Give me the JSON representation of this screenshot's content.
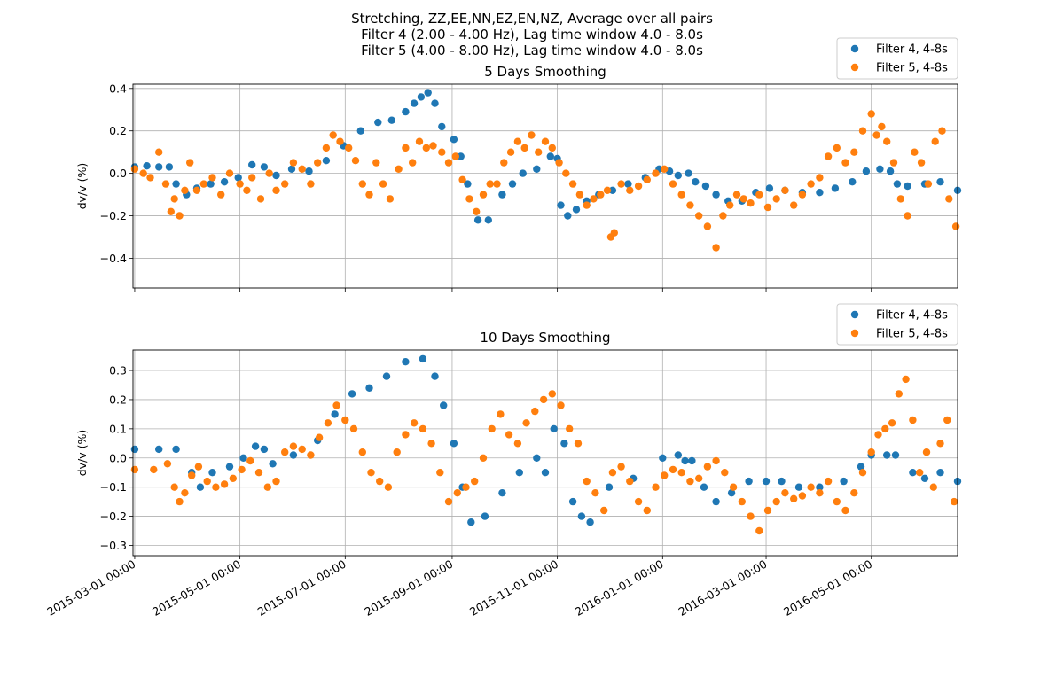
{
  "figure": {
    "title_lines": [
      "Stretching, ZZ,EE,NN,EZ,EN,NZ, Average over all pairs",
      "Filter 4 (2.00 - 4.00 Hz), Lag time window 4.0 - 8.0s",
      "Filter 5 (4.00 - 8.00 Hz), Lag time window 4.0 - 8.0s"
    ]
  },
  "colors": {
    "filter4": "#1f77b4",
    "filter5": "#ff7f0e",
    "grid": "#b0b0b0"
  },
  "chart_data": [
    {
      "type": "scatter",
      "title": "5 Days Smoothing",
      "xlabel": "",
      "ylabel": "dv/v (%)",
      "xlim": [
        "2015-02-28",
        "2016-06-20"
      ],
      "ylim": [
        -0.54,
        0.42
      ],
      "yticks": [
        -0.4,
        -0.2,
        0.0,
        0.2,
        0.4
      ],
      "ytick_labels": [
        "−0.4",
        "−0.2",
        "0.0",
        "0.2",
        "0.4"
      ],
      "grid": true,
      "legend_placement": "top-right, outside",
      "series": [
        {
          "name": "Filter 4, 4-8s",
          "x": [
            "2015-03-01",
            "2015-03-08",
            "2015-03-15",
            "2015-03-21",
            "2015-03-25",
            "2015-03-31",
            "2015-04-06",
            "2015-04-14",
            "2015-04-22",
            "2015-04-30",
            "2015-05-08",
            "2015-05-15",
            "2015-05-22",
            "2015-05-31",
            "2015-06-10",
            "2015-06-20",
            "2015-06-30",
            "2015-07-10",
            "2015-07-20",
            "2015-07-28",
            "2015-08-05",
            "2015-08-10",
            "2015-08-14",
            "2015-08-18",
            "2015-08-22",
            "2015-08-26",
            "2015-09-02",
            "2015-09-06",
            "2015-09-10",
            "2015-09-16",
            "2015-09-22",
            "2015-09-30",
            "2015-10-06",
            "2015-10-12",
            "2015-10-20",
            "2015-10-28",
            "2015-11-01",
            "2015-11-03",
            "2015-11-07",
            "2015-11-12",
            "2015-11-18",
            "2015-11-25",
            "2015-12-03",
            "2015-12-12",
            "2015-12-22",
            "2015-12-30",
            "2016-01-05",
            "2016-01-10",
            "2016-01-16",
            "2016-01-20",
            "2016-01-26",
            "2016-02-01",
            "2016-02-08",
            "2016-02-16",
            "2016-02-24",
            "2016-03-03",
            "2016-03-12",
            "2016-03-22",
            "2016-04-01",
            "2016-04-10",
            "2016-04-20",
            "2016-04-28",
            "2016-05-06",
            "2016-05-12",
            "2016-05-16",
            "2016-05-22",
            "2016-06-01",
            "2016-06-10",
            "2016-06-20"
          ],
          "y": [
            0.03,
            0.035,
            0.03,
            0.03,
            -0.05,
            -0.1,
            -0.07,
            -0.05,
            -0.04,
            -0.02,
            0.04,
            0.03,
            -0.01,
            0.02,
            0.01,
            0.06,
            0.13,
            0.2,
            0.24,
            0.25,
            0.29,
            0.33,
            0.36,
            0.38,
            0.33,
            0.22,
            0.16,
            0.08,
            -0.05,
            -0.22,
            -0.22,
            -0.1,
            -0.05,
            0.0,
            0.02,
            0.08,
            0.07,
            -0.15,
            -0.2,
            -0.17,
            -0.13,
            -0.1,
            -0.08,
            -0.05,
            -0.02,
            0.02,
            0.01,
            -0.01,
            0.0,
            -0.04,
            -0.06,
            -0.1,
            -0.13,
            -0.13,
            -0.09,
            -0.07,
            -0.08,
            -0.09,
            -0.09,
            -0.07,
            -0.04,
            0.01,
            0.02,
            0.01,
            -0.05,
            -0.06,
            -0.05,
            -0.04,
            -0.08
          ]
        },
        {
          "name": "Filter 5, 4-8s",
          "x": [
            "2015-03-01",
            "2015-03-06",
            "2015-03-10",
            "2015-03-15",
            "2015-03-19",
            "2015-03-22",
            "2015-03-24",
            "2015-03-27",
            "2015-03-30",
            "2015-04-02",
            "2015-04-06",
            "2015-04-10",
            "2015-04-15",
            "2015-04-20",
            "2015-04-25",
            "2015-05-01",
            "2015-05-05",
            "2015-05-08",
            "2015-05-13",
            "2015-05-18",
            "2015-05-22",
            "2015-05-27",
            "2015-06-01",
            "2015-06-06",
            "2015-06-11",
            "2015-06-15",
            "2015-06-20",
            "2015-06-24",
            "2015-06-28",
            "2015-07-03",
            "2015-07-07",
            "2015-07-11",
            "2015-07-15",
            "2015-07-19",
            "2015-07-23",
            "2015-07-27",
            "2015-08-01",
            "2015-08-05",
            "2015-08-09",
            "2015-08-13",
            "2015-08-17",
            "2015-08-21",
            "2015-08-26",
            "2015-08-30",
            "2015-09-03",
            "2015-09-07",
            "2015-09-11",
            "2015-09-15",
            "2015-09-19",
            "2015-09-23",
            "2015-09-27",
            "2015-10-01",
            "2015-10-05",
            "2015-10-09",
            "2015-10-13",
            "2015-10-17",
            "2015-10-21",
            "2015-10-25",
            "2015-10-29",
            "2015-11-02",
            "2015-11-06",
            "2015-11-10",
            "2015-11-14",
            "2015-11-18",
            "2015-11-22",
            "2015-11-26",
            "2015-11-30",
            "2015-12-02",
            "2015-12-04",
            "2015-12-08",
            "2015-12-13",
            "2015-12-18",
            "2015-12-23",
            "2015-12-28",
            "2016-01-02",
            "2016-01-07",
            "2016-01-12",
            "2016-01-17",
            "2016-01-22",
            "2016-01-27",
            "2016-02-01",
            "2016-02-05",
            "2016-02-09",
            "2016-02-13",
            "2016-02-17",
            "2016-02-21",
            "2016-02-26",
            "2016-03-02",
            "2016-03-07",
            "2016-03-12",
            "2016-03-17",
            "2016-03-22",
            "2016-03-27",
            "2016-04-01",
            "2016-04-06",
            "2016-04-11",
            "2016-04-16",
            "2016-04-21",
            "2016-04-26",
            "2016-05-01",
            "2016-05-04",
            "2016-05-07",
            "2016-05-10",
            "2016-05-14",
            "2016-05-18",
            "2016-05-22",
            "2016-05-26",
            "2016-05-30",
            "2016-06-03",
            "2016-06-07",
            "2016-06-11",
            "2016-06-15",
            "2016-06-19"
          ],
          "y": [
            0.02,
            0.0,
            -0.02,
            0.1,
            -0.05,
            -0.18,
            -0.12,
            -0.2,
            -0.08,
            0.05,
            -0.08,
            -0.05,
            -0.02,
            -0.1,
            0.0,
            -0.05,
            -0.08,
            -0.02,
            -0.12,
            0.0,
            -0.08,
            -0.05,
            0.05,
            0.02,
            -0.05,
            0.05,
            0.12,
            0.18,
            0.15,
            0.12,
            0.06,
            -0.05,
            -0.1,
            0.05,
            -0.05,
            -0.12,
            0.02,
            0.12,
            0.05,
            0.15,
            0.12,
            0.13,
            0.1,
            0.05,
            0.08,
            -0.03,
            -0.12,
            -0.18,
            -0.1,
            -0.05,
            -0.05,
            0.05,
            0.1,
            0.15,
            0.12,
            0.18,
            0.1,
            0.15,
            0.12,
            0.05,
            0.0,
            -0.05,
            -0.1,
            -0.15,
            -0.12,
            -0.1,
            -0.08,
            -0.3,
            -0.28,
            -0.05,
            -0.08,
            -0.06,
            -0.03,
            0.0,
            0.02,
            -0.05,
            -0.1,
            -0.15,
            -0.2,
            -0.25,
            -0.35,
            -0.2,
            -0.15,
            -0.1,
            -0.12,
            -0.14,
            -0.1,
            -0.16,
            -0.12,
            -0.08,
            -0.15,
            -0.1,
            -0.05,
            -0.02,
            0.08,
            0.12,
            0.05,
            0.1,
            0.2,
            0.28,
            0.18,
            0.22,
            0.15,
            0.05,
            -0.12,
            -0.2,
            0.1,
            0.05,
            -0.05,
            0.15,
            0.2,
            -0.12,
            -0.25
          ]
        }
      ]
    },
    {
      "type": "scatter",
      "title": "10 Days Smoothing",
      "xlabel": "",
      "ylabel": "dv/v (%)",
      "xlim": [
        "2015-02-28",
        "2016-06-20"
      ],
      "ylim": [
        -0.335,
        0.37
      ],
      "yticks": [
        -0.3,
        -0.2,
        -0.1,
        0.0,
        0.1,
        0.2,
        0.3
      ],
      "ytick_labels": [
        "−0.3",
        "−0.2",
        "−0.1",
        "0.0",
        "0.1",
        "0.2",
        "0.3"
      ],
      "xticks": [
        "2015-03-01",
        "2015-05-01",
        "2015-07-01",
        "2015-09-01",
        "2015-11-01",
        "2016-01-01",
        "2016-03-01",
        "2016-05-01"
      ],
      "xtick_labels": [
        "2015-03-01 00:00",
        "2015-05-01 00:00",
        "2015-07-01 00:00",
        "2015-09-01 00:00",
        "2015-11-01 00:00",
        "2016-01-01 00:00",
        "2016-03-01 00:00",
        "2016-05-01 00:00"
      ],
      "grid": true,
      "legend_placement": "top-right, outside",
      "series": [
        {
          "name": "Filter 4, 4-8s",
          "x": [
            "2015-03-01",
            "2015-03-15",
            "2015-03-25",
            "2015-04-03",
            "2015-04-08",
            "2015-04-15",
            "2015-04-25",
            "2015-05-03",
            "2015-05-10",
            "2015-05-15",
            "2015-05-20",
            "2015-06-01",
            "2015-06-15",
            "2015-06-25",
            "2015-07-05",
            "2015-07-15",
            "2015-07-25",
            "2015-08-05",
            "2015-08-15",
            "2015-08-22",
            "2015-08-27",
            "2015-09-02",
            "2015-09-07",
            "2015-09-12",
            "2015-09-20",
            "2015-09-30",
            "2015-10-10",
            "2015-10-20",
            "2015-10-25",
            "2015-10-30",
            "2015-11-05",
            "2015-11-10",
            "2015-11-15",
            "2015-11-20",
            "2015-12-01",
            "2015-12-15",
            "2016-01-01",
            "2016-01-10",
            "2016-01-14",
            "2016-01-18",
            "2016-01-25",
            "2016-02-01",
            "2016-02-10",
            "2016-02-20",
            "2016-03-01",
            "2016-03-10",
            "2016-03-20",
            "2016-04-01",
            "2016-04-15",
            "2016-04-25",
            "2016-05-01",
            "2016-05-10",
            "2016-05-15",
            "2016-05-25",
            "2016-06-01",
            "2016-06-10",
            "2016-06-20"
          ],
          "y": [
            0.03,
            0.03,
            0.03,
            -0.05,
            -0.1,
            -0.05,
            -0.03,
            0.0,
            0.04,
            0.03,
            -0.02,
            0.01,
            0.06,
            0.15,
            0.22,
            0.24,
            0.28,
            0.33,
            0.34,
            0.28,
            0.18,
            0.05,
            -0.1,
            -0.22,
            -0.2,
            -0.12,
            -0.05,
            0.0,
            -0.05,
            0.1,
            0.05,
            -0.15,
            -0.2,
            -0.22,
            -0.1,
            -0.07,
            0.0,
            0.01,
            -0.01,
            -0.01,
            -0.1,
            -0.15,
            -0.12,
            -0.08,
            -0.08,
            -0.08,
            -0.1,
            -0.1,
            -0.08,
            -0.03,
            0.01,
            0.01,
            0.01,
            -0.05,
            -0.07,
            -0.05,
            -0.08
          ]
        },
        {
          "name": "Filter 5, 4-8s",
          "x": [
            "2015-03-01",
            "2015-03-12",
            "2015-03-20",
            "2015-03-24",
            "2015-03-27",
            "2015-03-30",
            "2015-04-03",
            "2015-04-07",
            "2015-04-12",
            "2015-04-17",
            "2015-04-22",
            "2015-04-27",
            "2015-05-02",
            "2015-05-07",
            "2015-05-12",
            "2015-05-17",
            "2015-05-22",
            "2015-05-27",
            "2015-06-01",
            "2015-06-06",
            "2015-06-11",
            "2015-06-16",
            "2015-06-21",
            "2015-06-26",
            "2015-07-01",
            "2015-07-06",
            "2015-07-11",
            "2015-07-16",
            "2015-07-21",
            "2015-07-26",
            "2015-07-31",
            "2015-08-05",
            "2015-08-10",
            "2015-08-15",
            "2015-08-20",
            "2015-08-25",
            "2015-08-30",
            "2015-09-04",
            "2015-09-09",
            "2015-09-14",
            "2015-09-19",
            "2015-09-24",
            "2015-09-29",
            "2015-10-04",
            "2015-10-09",
            "2015-10-14",
            "2015-10-19",
            "2015-10-24",
            "2015-10-29",
            "2015-11-03",
            "2015-11-08",
            "2015-11-13",
            "2015-11-18",
            "2015-11-23",
            "2015-11-28",
            "2015-12-03",
            "2015-12-08",
            "2015-12-13",
            "2015-12-18",
            "2015-12-23",
            "2015-12-28",
            "2016-01-02",
            "2016-01-07",
            "2016-01-12",
            "2016-01-17",
            "2016-01-22",
            "2016-01-27",
            "2016-02-01",
            "2016-02-06",
            "2016-02-11",
            "2016-02-16",
            "2016-02-21",
            "2016-02-26",
            "2016-03-02",
            "2016-03-07",
            "2016-03-12",
            "2016-03-17",
            "2016-03-22",
            "2016-03-27",
            "2016-04-01",
            "2016-04-06",
            "2016-04-11",
            "2016-04-16",
            "2016-04-21",
            "2016-04-26",
            "2016-05-01",
            "2016-05-05",
            "2016-05-09",
            "2016-05-13",
            "2016-05-17",
            "2016-05-21",
            "2016-05-25",
            "2016-05-29",
            "2016-06-02",
            "2016-06-06",
            "2016-06-10",
            "2016-06-14",
            "2016-06-18"
          ],
          "y": [
            -0.04,
            -0.04,
            -0.02,
            -0.1,
            -0.15,
            -0.12,
            -0.06,
            -0.03,
            -0.08,
            -0.1,
            -0.09,
            -0.07,
            -0.04,
            -0.01,
            -0.05,
            -0.1,
            -0.08,
            0.02,
            0.04,
            0.03,
            0.01,
            0.07,
            0.12,
            0.18,
            0.13,
            0.1,
            0.02,
            -0.05,
            -0.08,
            -0.1,
            0.02,
            0.08,
            0.12,
            0.1,
            0.05,
            -0.05,
            -0.15,
            -0.12,
            -0.1,
            -0.08,
            0.0,
            0.1,
            0.15,
            0.08,
            0.05,
            0.12,
            0.16,
            0.2,
            0.22,
            0.18,
            0.1,
            0.05,
            -0.08,
            -0.12,
            -0.18,
            -0.05,
            -0.03,
            -0.08,
            -0.15,
            -0.18,
            -0.1,
            -0.06,
            -0.04,
            -0.05,
            -0.08,
            -0.07,
            -0.03,
            -0.01,
            -0.05,
            -0.1,
            -0.15,
            -0.2,
            -0.25,
            -0.18,
            -0.15,
            -0.12,
            -0.14,
            -0.13,
            -0.1,
            -0.12,
            -0.08,
            -0.15,
            -0.18,
            -0.12,
            -0.05,
            0.02,
            0.08,
            0.1,
            0.12,
            0.22,
            0.27,
            0.13,
            -0.05,
            0.02,
            -0.1,
            0.05,
            0.13,
            -0.15
          ]
        }
      ]
    }
  ]
}
